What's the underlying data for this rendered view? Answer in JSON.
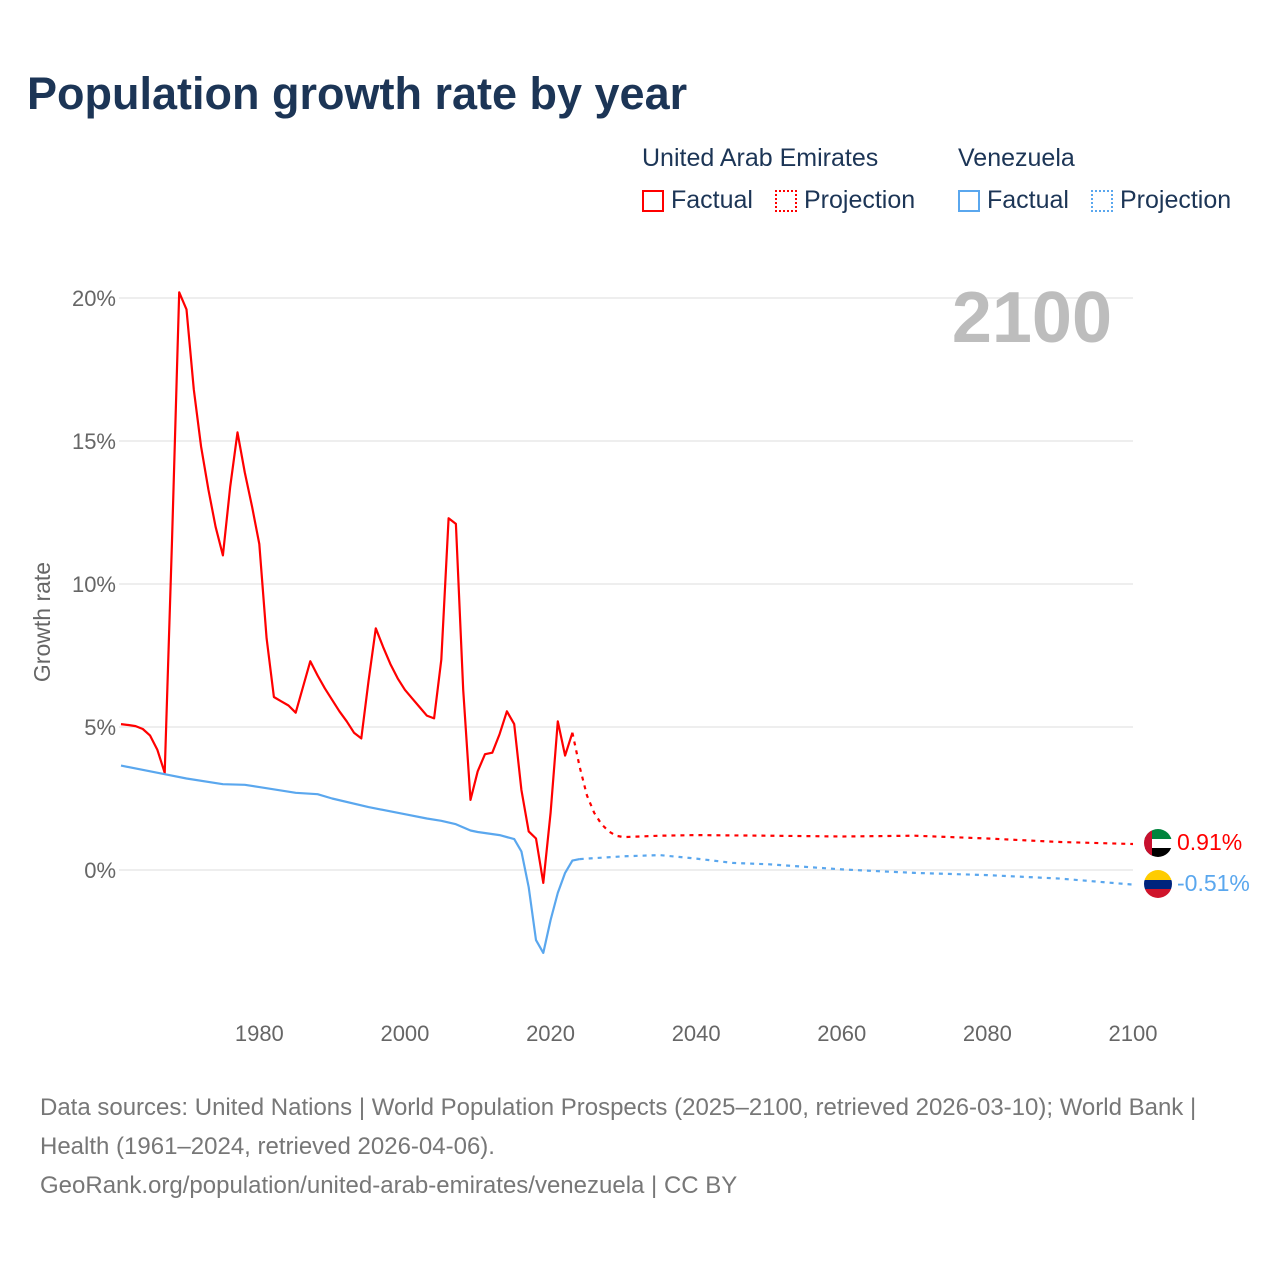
{
  "title": "Population growth rate by year",
  "legend": {
    "groups": [
      {
        "name": "United Arab Emirates",
        "factual": "Factual",
        "projection": "Projection",
        "color": "#ff0000"
      },
      {
        "name": "Venezuela",
        "factual": "Factual",
        "projection": "Projection",
        "color": "#5aa7ee"
      }
    ]
  },
  "year_display": "2100",
  "footer": {
    "sources": "Data sources: United Nations | World Population Prospects (2025–2100, retrieved 2026-03-10); World Bank | Health (1961–2024, retrieved 2026-04-06).",
    "link": "GeoRank.org/population/united-arab-emirates/venezuela | CC BY"
  },
  "chart_data": {
    "type": "line",
    "title": "Population growth rate by year",
    "xlabel": "",
    "ylabel": "Growth rate",
    "xlim": [
      1961,
      2100
    ],
    "ylim": [
      -3.5,
      20.5
    ],
    "grid": true,
    "x_ticks": [
      "1980",
      "2000",
      "2020",
      "2040",
      "2060",
      "2080",
      "2100"
    ],
    "x_tick_values": [
      1980,
      2000,
      2020,
      2040,
      2060,
      2080,
      2100
    ],
    "y_ticks": [
      "0%",
      "5%",
      "10%",
      "15%",
      "20%"
    ],
    "y_tick_values": [
      0,
      5,
      10,
      15,
      20
    ],
    "series": [
      {
        "name": "United Arab Emirates",
        "kind": "Factual",
        "color": "#ff0000",
        "dashed": false,
        "points": [
          [
            1961,
            5.1
          ],
          [
            1962,
            5.07
          ],
          [
            1963,
            5.03
          ],
          [
            1964,
            4.93
          ],
          [
            1965,
            4.7
          ],
          [
            1966,
            4.2
          ],
          [
            1967,
            3.4
          ],
          [
            1968,
            11.5
          ],
          [
            1969,
            20.2
          ],
          [
            1970,
            19.6
          ],
          [
            1971,
            16.8
          ],
          [
            1972,
            14.8
          ],
          [
            1973,
            13.3
          ],
          [
            1974,
            12.0
          ],
          [
            1975,
            11.0
          ],
          [
            1976,
            13.4
          ],
          [
            1977,
            15.3
          ],
          [
            1978,
            13.9
          ],
          [
            1979,
            12.7
          ],
          [
            1980,
            11.4
          ],
          [
            1981,
            8.1
          ],
          [
            1982,
            6.05
          ],
          [
            1983,
            5.9
          ],
          [
            1984,
            5.75
          ],
          [
            1985,
            5.5
          ],
          [
            1986,
            6.4
          ],
          [
            1987,
            7.3
          ],
          [
            1988,
            6.8
          ],
          [
            1989,
            6.35
          ],
          [
            1990,
            5.95
          ],
          [
            1991,
            5.55
          ],
          [
            1992,
            5.2
          ],
          [
            1993,
            4.8
          ],
          [
            1994,
            4.6
          ],
          [
            1995,
            6.6
          ],
          [
            1996,
            8.45
          ],
          [
            1997,
            7.8
          ],
          [
            1998,
            7.2
          ],
          [
            1999,
            6.7
          ],
          [
            2000,
            6.3
          ],
          [
            2001,
            6.0
          ],
          [
            2002,
            5.7
          ],
          [
            2003,
            5.4
          ],
          [
            2004,
            5.3
          ],
          [
            2005,
            7.35
          ],
          [
            2006,
            12.3
          ],
          [
            2007,
            12.1
          ],
          [
            2008,
            6.3
          ],
          [
            2009,
            2.45
          ],
          [
            2010,
            3.45
          ],
          [
            2011,
            4.05
          ],
          [
            2012,
            4.1
          ],
          [
            2013,
            4.75
          ],
          [
            2014,
            5.55
          ],
          [
            2015,
            5.1
          ],
          [
            2016,
            2.8
          ],
          [
            2017,
            1.35
          ],
          [
            2018,
            1.1
          ],
          [
            2019,
            -0.45
          ],
          [
            2020,
            2.0
          ],
          [
            2021,
            5.2
          ],
          [
            2022,
            4.0
          ],
          [
            2023,
            4.8
          ]
        ]
      },
      {
        "name": "United Arab Emirates",
        "kind": "Projection",
        "color": "#ff0000",
        "dashed": true,
        "points": [
          [
            2023,
            4.8
          ],
          [
            2024,
            3.6
          ],
          [
            2025,
            2.6
          ],
          [
            2026,
            2.0
          ],
          [
            2027,
            1.6
          ],
          [
            2028,
            1.35
          ],
          [
            2029,
            1.2
          ],
          [
            2030,
            1.15
          ],
          [
            2035,
            1.2
          ],
          [
            2040,
            1.22
          ],
          [
            2050,
            1.2
          ],
          [
            2060,
            1.17
          ],
          [
            2070,
            1.2
          ],
          [
            2080,
            1.1
          ],
          [
            2090,
            0.98
          ],
          [
            2100,
            0.91
          ]
        ]
      },
      {
        "name": "Venezuela",
        "kind": "Factual",
        "color": "#5aa7ee",
        "dashed": false,
        "points": [
          [
            1961,
            3.65
          ],
          [
            1967,
            3.35
          ],
          [
            1970,
            3.2
          ],
          [
            1975,
            3.0
          ],
          [
            1978,
            2.98
          ],
          [
            1980,
            2.9
          ],
          [
            1985,
            2.7
          ],
          [
            1988,
            2.65
          ],
          [
            1990,
            2.5
          ],
          [
            1995,
            2.2
          ],
          [
            2000,
            1.95
          ],
          [
            2003,
            1.8
          ],
          [
            2005,
            1.72
          ],
          [
            2007,
            1.6
          ],
          [
            2009,
            1.38
          ],
          [
            2010,
            1.33
          ],
          [
            2013,
            1.22
          ],
          [
            2015,
            1.08
          ],
          [
            2016,
            0.65
          ],
          [
            2017,
            -0.6
          ],
          [
            2018,
            -2.45
          ],
          [
            2019,
            -2.9
          ],
          [
            2020,
            -1.75
          ],
          [
            2021,
            -0.8
          ],
          [
            2022,
            -0.1
          ],
          [
            2023,
            0.33
          ],
          [
            2024,
            0.38
          ]
        ]
      },
      {
        "name": "Venezuela",
        "kind": "Projection",
        "color": "#5aa7ee",
        "dashed": true,
        "points": [
          [
            2024,
            0.38
          ],
          [
            2025,
            0.4
          ],
          [
            2030,
            0.48
          ],
          [
            2035,
            0.52
          ],
          [
            2040,
            0.4
          ],
          [
            2045,
            0.25
          ],
          [
            2050,
            0.2
          ],
          [
            2060,
            0.02
          ],
          [
            2070,
            -0.1
          ],
          [
            2080,
            -0.18
          ],
          [
            2090,
            -0.3
          ],
          [
            2100,
            -0.51
          ]
        ]
      }
    ],
    "end_labels": [
      {
        "country": "United Arab Emirates",
        "text": "0.91%",
        "value": 0.91,
        "color": "#ff0000"
      },
      {
        "country": "Venezuela",
        "text": "-0.51%",
        "value": -0.51,
        "color": "#5aa7ee"
      }
    ]
  }
}
